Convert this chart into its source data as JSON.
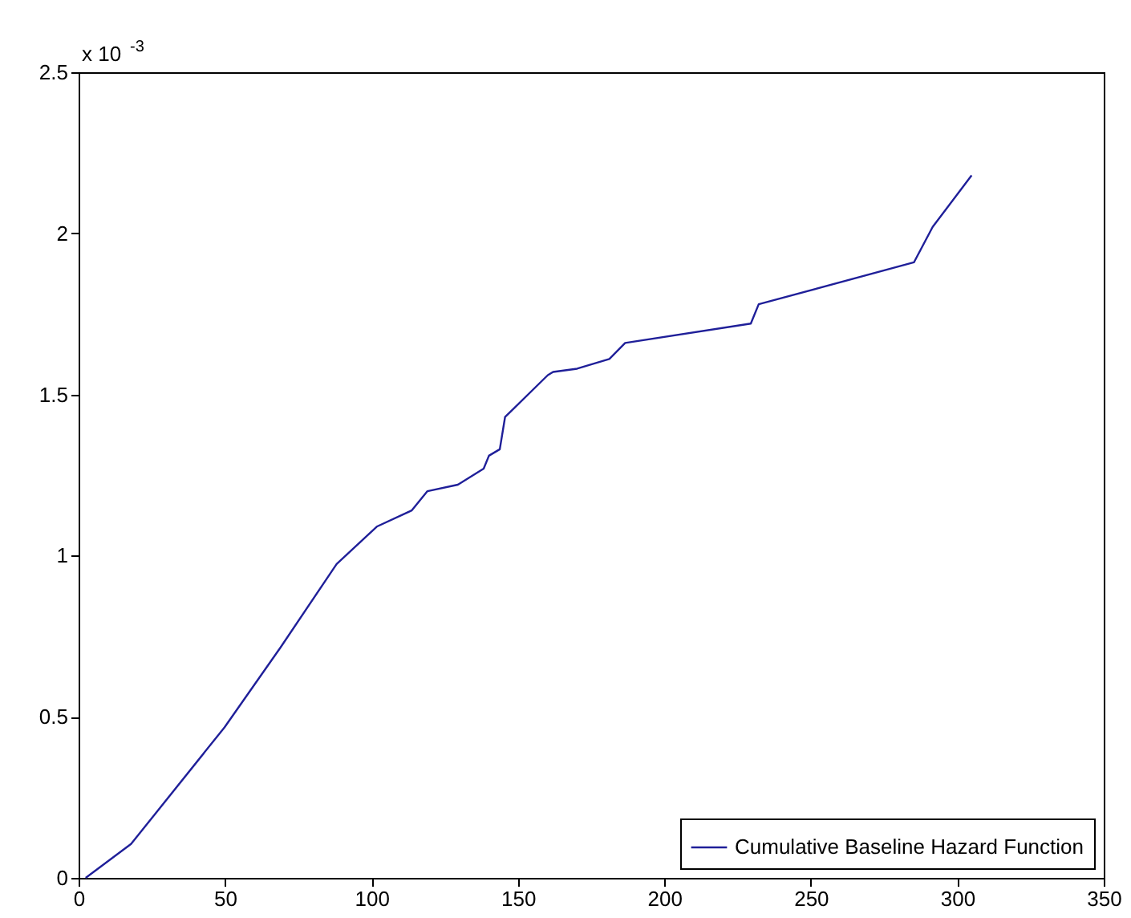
{
  "chart_data": {
    "type": "line",
    "x": [
      2.4,
      17.9,
      49.8,
      69,
      88.1,
      101.8,
      113.7,
      119.1,
      129.5,
      138.3,
      140.1,
      143.8,
      145.6,
      160.2,
      162,
      170.2,
      181.2,
      186.6,
      229.5,
      232.2,
      285.2,
      291.6,
      304.9
    ],
    "series": [
      {
        "name": "Cumulative Baseline Hazard Function",
        "color": "#1f1f99",
        "values": [
          0,
          0.105,
          0.467,
          0.716,
          0.974,
          1.09,
          1.14,
          1.2,
          1.22,
          1.27,
          1.31,
          1.33,
          1.43,
          1.56,
          1.57,
          1.58,
          1.61,
          1.66,
          1.72,
          1.78,
          1.91,
          2.02,
          2.18
        ]
      }
    ],
    "xlim": [
      0,
      350
    ],
    "xticks": [
      0,
      50,
      100,
      150,
      200,
      250,
      300,
      350
    ],
    "ylim": [
      0,
      2.5
    ],
    "yticks": [
      0,
      0.5,
      1,
      1.5,
      2,
      2.5
    ],
    "annotations": [
      "x 10$^{-3}$"
    ],
    "legend": "bottom right",
    "grid": false
  }
}
